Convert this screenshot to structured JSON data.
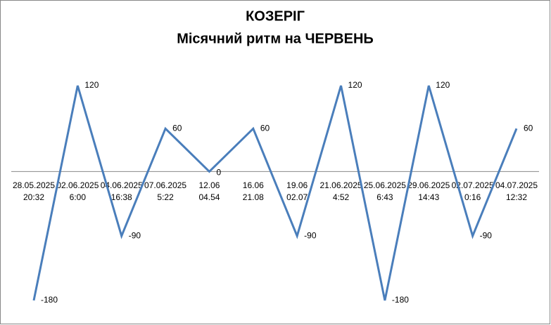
{
  "chart_data": {
    "type": "line",
    "title": "КОЗЕРІГ",
    "subtitle": "Місячний ритм на ЧЕРВЕНЬ",
    "categories": [
      [
        "28.05.2025",
        "20:32"
      ],
      [
        "02.06.2025",
        "6:00"
      ],
      [
        "04.06.2025",
        "16:38"
      ],
      [
        "07.06.2025",
        "5:22"
      ],
      [
        "12.06",
        "04.54"
      ],
      [
        "16.06",
        "21.08"
      ],
      [
        "19.06",
        "02.07"
      ],
      [
        "21.06.2025",
        "4:52"
      ],
      [
        "25.06.2025",
        "6:43"
      ],
      [
        "29.06.2025",
        "14:43"
      ],
      [
        "02.07.2025",
        "0:16"
      ],
      [
        "04.07.2025",
        "12:32"
      ]
    ],
    "series": [
      {
        "color": "#4a7ebb",
        "values": [
          -180,
          120,
          -90,
          60,
          0,
          60,
          -90,
          120,
          -180,
          120,
          -90,
          60
        ]
      }
    ],
    "ylim": [
      -180,
      120
    ]
  }
}
